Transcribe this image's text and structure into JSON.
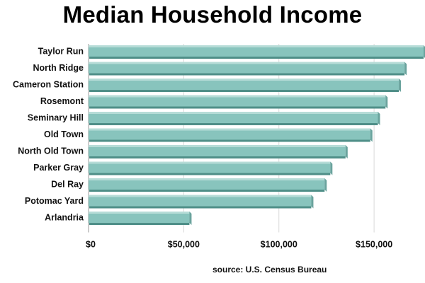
{
  "chart_data": {
    "type": "bar",
    "orientation": "horizontal",
    "title": "Median Household Income",
    "source": "source: U.S. Census Bureau",
    "categories": [
      "Taylor Run",
      "North Ridge",
      "Cameron Station",
      "Rosemont",
      "Seminary Hill",
      "Old Town",
      "North Old Town",
      "Parker Gray",
      "Del Ray",
      "Potomac Yard",
      "Arlandria"
    ],
    "values": [
      176000,
      166000,
      163000,
      156000,
      152000,
      148000,
      135000,
      127000,
      124000,
      117000,
      53000
    ],
    "xlim": [
      0,
      176000
    ],
    "xticks": [
      0,
      50000,
      100000,
      150000
    ],
    "xtick_labels": [
      "$0",
      "$50,000",
      "$100,000",
      "$150,000"
    ],
    "grid": true,
    "colors": {
      "bar_face": "#88c4bd",
      "bar_top": "#b6dcd7",
      "bar_bottom": "#4f8f88",
      "bar_end": "#6aa39d",
      "grid": "#d9d9d9"
    }
  }
}
